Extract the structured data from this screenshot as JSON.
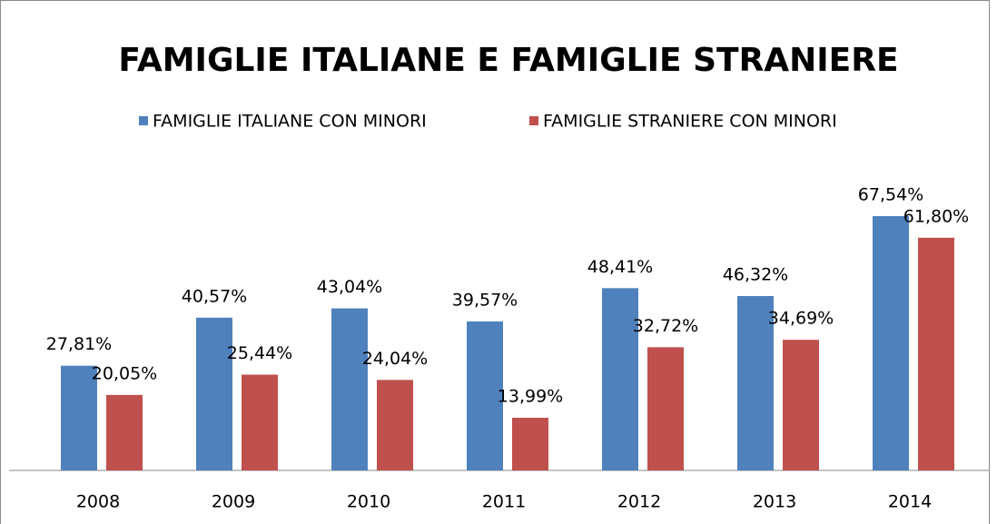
{
  "chart_data": {
    "type": "bar",
    "title": "FAMIGLIE ITALIANE E FAMIGLIE STRANIERE",
    "categories": [
      "2008",
      "2009",
      "2010",
      "2011",
      "2012",
      "2013",
      "2014"
    ],
    "series": [
      {
        "name": "FAMIGLIE ITALIANE CON MINORI",
        "color": "#4f81bd",
        "values": [
          27.81,
          40.57,
          43.04,
          39.57,
          48.41,
          46.32,
          67.54
        ],
        "value_labels": [
          "27,81%",
          "40,57%",
          "43,04%",
          "39,57%",
          "48,41%",
          "46,32%",
          "67,54%"
        ]
      },
      {
        "name": "FAMIGLIE STRANIERE CON MINORI",
        "color": "#c0504d",
        "values": [
          20.05,
          25.44,
          24.04,
          13.99,
          32.72,
          34.69,
          61.8
        ],
        "value_labels": [
          "20,05%",
          "25,44%",
          "24,04%",
          "13,99%",
          "32,72%",
          "34,69%",
          "61,80%"
        ]
      }
    ]
  }
}
